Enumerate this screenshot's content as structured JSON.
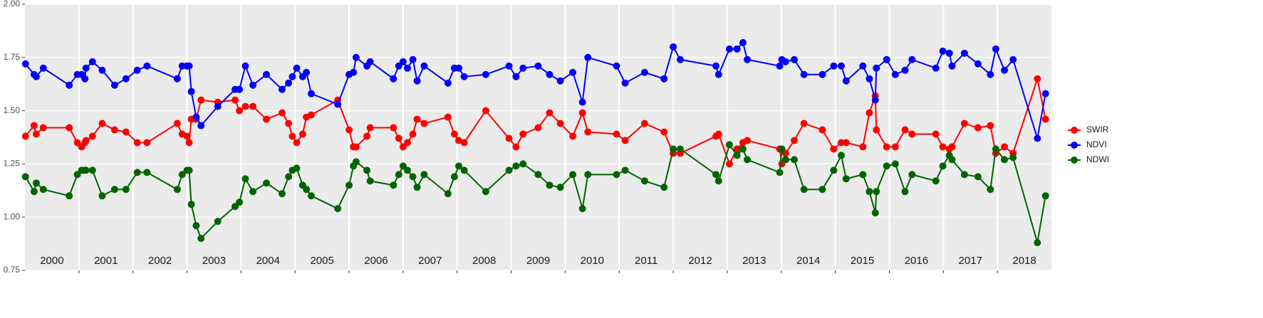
{
  "chart_data": {
    "type": "line",
    "x": [
      2000.01,
      2000.17,
      2000.21,
      2000.34,
      2000.82,
      2000.97,
      2001.05,
      2001.11,
      2001.13,
      2001.25,
      2001.43,
      2001.66,
      2001.87,
      2002.08,
      2002.26,
      2002.82,
      2002.91,
      2003.0,
      2003.04,
      2003.08,
      2003.17,
      2003.26,
      2003.57,
      2003.89,
      2003.97,
      2004.08,
      2004.22,
      2004.47,
      2004.76,
      2004.88,
      2004.95,
      2005.03,
      2005.14,
      2005.21,
      2005.3,
      2005.79,
      2006.0,
      2006.08,
      2006.13,
      2006.33,
      2006.39,
      2006.82,
      2006.92,
      2007.0,
      2007.08,
      2007.18,
      2007.26,
      2007.39,
      2007.83,
      2007.95,
      2008.03,
      2008.13,
      2008.53,
      2008.96,
      2009.09,
      2009.22,
      2009.5,
      2009.71,
      2009.91,
      2010.14,
      2010.32,
      2010.42,
      2010.95,
      2011.11,
      2011.47,
      2011.83,
      2012.0,
      2012.13,
      2012.79,
      2012.84,
      2013.04,
      2013.18,
      2013.29,
      2013.37,
      2013.97,
      2014.01,
      2014.08,
      2014.24,
      2014.42,
      2014.76,
      2014.97,
      2015.11,
      2015.2,
      2015.51,
      2015.63,
      2015.74,
      2015.76,
      2015.95,
      2016.11,
      2016.29,
      2016.42,
      2016.86,
      2016.99,
      2017.11,
      2017.16,
      2017.39,
      2017.64,
      2017.87,
      2017.97,
      2018.13,
      2018.29,
      2018.74,
      2018.89
    ],
    "series": [
      {
        "name": "SWIR",
        "color": "#ff0000",
        "values": [
          1.38,
          1.43,
          1.39,
          1.42,
          1.42,
          1.35,
          1.33,
          1.35,
          1.36,
          1.38,
          1.44,
          1.41,
          1.4,
          1.35,
          1.35,
          1.44,
          1.39,
          1.38,
          1.35,
          1.46,
          1.46,
          1.55,
          1.54,
          1.55,
          1.5,
          1.52,
          1.52,
          1.46,
          1.49,
          1.44,
          1.38,
          1.35,
          1.39,
          1.47,
          1.48,
          1.55,
          1.41,
          1.33,
          1.33,
          1.38,
          1.42,
          1.42,
          1.37,
          1.33,
          1.35,
          1.39,
          1.46,
          1.44,
          1.47,
          1.39,
          1.36,
          1.35,
          1.5,
          1.37,
          1.33,
          1.39,
          1.42,
          1.49,
          1.44,
          1.38,
          1.49,
          1.4,
          1.39,
          1.36,
          1.44,
          1.4,
          1.3,
          1.3,
          1.38,
          1.39,
          1.25,
          1.32,
          1.35,
          1.36,
          1.32,
          1.25,
          1.3,
          1.36,
          1.44,
          1.41,
          1.32,
          1.35,
          1.35,
          1.33,
          1.49,
          1.57,
          1.41,
          1.33,
          1.33,
          1.41,
          1.39,
          1.39,
          1.33,
          1.32,
          1.33,
          1.44,
          1.42,
          1.43,
          1.3,
          1.33,
          1.3,
          1.65,
          1.46
        ]
      },
      {
        "name": "NDVI",
        "color": "#0000ff",
        "values": [
          1.72,
          1.67,
          1.66,
          1.7,
          1.62,
          1.67,
          1.67,
          1.65,
          1.7,
          1.73,
          1.69,
          1.62,
          1.65,
          1.69,
          1.71,
          1.65,
          1.71,
          1.71,
          1.71,
          1.59,
          1.47,
          1.43,
          1.52,
          1.6,
          1.6,
          1.71,
          1.62,
          1.67,
          1.6,
          1.63,
          1.66,
          1.7,
          1.66,
          1.68,
          1.58,
          1.53,
          1.67,
          1.68,
          1.75,
          1.71,
          1.73,
          1.65,
          1.71,
          1.73,
          1.7,
          1.74,
          1.64,
          1.71,
          1.63,
          1.7,
          1.7,
          1.66,
          1.67,
          1.71,
          1.66,
          1.7,
          1.71,
          1.67,
          1.64,
          1.68,
          1.54,
          1.75,
          1.71,
          1.63,
          1.68,
          1.65,
          1.8,
          1.74,
          1.71,
          1.67,
          1.79,
          1.79,
          1.82,
          1.74,
          1.71,
          1.74,
          1.73,
          1.74,
          1.67,
          1.67,
          1.71,
          1.71,
          1.64,
          1.71,
          1.65,
          1.55,
          1.7,
          1.74,
          1.67,
          1.69,
          1.74,
          1.7,
          1.78,
          1.77,
          1.71,
          1.77,
          1.72,
          1.67,
          1.79,
          1.69,
          1.74,
          1.37,
          1.58
        ]
      },
      {
        "name": "NDWI",
        "color": "#006400",
        "values": [
          1.19,
          1.12,
          1.16,
          1.13,
          1.1,
          1.2,
          1.22,
          1.22,
          1.22,
          1.22,
          1.1,
          1.13,
          1.13,
          1.21,
          1.21,
          1.13,
          1.2,
          1.22,
          1.22,
          1.06,
          0.96,
          0.9,
          0.98,
          1.05,
          1.07,
          1.18,
          1.12,
          1.16,
          1.11,
          1.19,
          1.22,
          1.23,
          1.15,
          1.13,
          1.1,
          1.04,
          1.15,
          1.24,
          1.26,
          1.22,
          1.17,
          1.15,
          1.2,
          1.24,
          1.22,
          1.19,
          1.14,
          1.2,
          1.11,
          1.19,
          1.24,
          1.22,
          1.12,
          1.22,
          1.24,
          1.25,
          1.2,
          1.15,
          1.14,
          1.2,
          1.04,
          1.2,
          1.2,
          1.22,
          1.17,
          1.14,
          1.32,
          1.32,
          1.2,
          1.17,
          1.34,
          1.29,
          1.32,
          1.27,
          1.21,
          1.32,
          1.27,
          1.27,
          1.13,
          1.13,
          1.22,
          1.29,
          1.18,
          1.2,
          1.12,
          1.02,
          1.12,
          1.24,
          1.25,
          1.12,
          1.2,
          1.17,
          1.24,
          1.29,
          1.27,
          1.2,
          1.19,
          1.13,
          1.32,
          1.27,
          1.28,
          0.88,
          1.1
        ]
      }
    ],
    "xlim": [
      2000,
      2019
    ],
    "xgrid": [
      2001,
      2002,
      2003,
      2004,
      2005,
      2006,
      2007,
      2008,
      2009,
      2010,
      2011,
      2012,
      2013,
      2014,
      2015,
      2016,
      2017,
      2018
    ],
    "year_labels": [
      {
        "value": 2000.5,
        "label": "2000"
      },
      {
        "value": 2001.5,
        "label": "2001"
      },
      {
        "value": 2002.5,
        "label": "2002"
      },
      {
        "value": 2003.5,
        "label": "2003"
      },
      {
        "value": 2004.5,
        "label": "2004"
      },
      {
        "value": 2005.5,
        "label": "2005"
      },
      {
        "value": 2006.5,
        "label": "2006"
      },
      {
        "value": 2007.5,
        "label": "2007"
      },
      {
        "value": 2008.5,
        "label": "2008"
      },
      {
        "value": 2009.5,
        "label": "2009"
      },
      {
        "value": 2010.5,
        "label": "2010"
      },
      {
        "value": 2011.5,
        "label": "2011"
      },
      {
        "value": 2012.5,
        "label": "2012"
      },
      {
        "value": 2013.5,
        "label": "2013"
      },
      {
        "value": 2014.5,
        "label": "2014"
      },
      {
        "value": 2015.5,
        "label": "2015"
      },
      {
        "value": 2016.5,
        "label": "2016"
      },
      {
        "value": 2017.5,
        "label": "2017"
      },
      {
        "value": 2018.5,
        "label": "2018"
      }
    ],
    "ylim": [
      0.75,
      2.0
    ],
    "yticks": [
      {
        "value": 0.75,
        "label": "0.75"
      },
      {
        "value": 1.0,
        "label": "1.00"
      },
      {
        "value": 1.25,
        "label": "1.25"
      },
      {
        "value": 1.5,
        "label": "1.50"
      },
      {
        "value": 1.75,
        "label": "1.75"
      },
      {
        "value": 2.0,
        "label": "2.00"
      }
    ],
    "grid": true,
    "legend": "right"
  }
}
